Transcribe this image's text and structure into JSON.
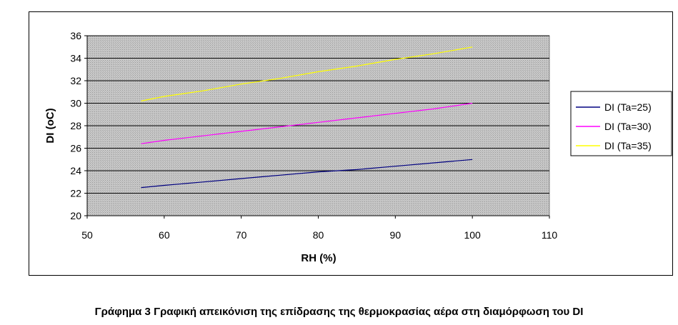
{
  "chart_data": {
    "type": "line",
    "xlabel": "RH (%)",
    "ylabel": "DI (oC)",
    "xlim": [
      50,
      110
    ],
    "ylim": [
      20,
      36
    ],
    "x_ticks": [
      "50",
      "60",
      "70",
      "80",
      "90",
      "100",
      "110"
    ],
    "y_ticks": [
      "20",
      "22",
      "24",
      "26",
      "28",
      "30",
      "32",
      "34",
      "36"
    ],
    "grid": true,
    "legend_position": "right",
    "series": [
      {
        "name": "DI (Ta=25)",
        "color": "#000080",
        "x": [
          57,
          60,
          65,
          70,
          75,
          80,
          85,
          90,
          95,
          100
        ],
        "y": [
          22.5,
          22.7,
          23.0,
          23.3,
          23.6,
          23.9,
          24.1,
          24.4,
          24.7,
          25.0
        ]
      },
      {
        "name": "DI (Ta=30)",
        "color": "#ff00ff",
        "x": [
          57,
          60,
          65,
          70,
          75,
          80,
          85,
          90,
          95,
          100
        ],
        "y": [
          26.4,
          26.7,
          27.1,
          27.5,
          27.9,
          28.3,
          28.7,
          29.1,
          29.5,
          30.0
        ]
      },
      {
        "name": "DI (Ta=35)",
        "color": "#ffff00",
        "x": [
          57,
          60,
          65,
          70,
          75,
          80,
          85,
          90,
          95,
          100
        ],
        "y": [
          30.2,
          30.6,
          31.1,
          31.7,
          32.2,
          32.8,
          33.3,
          33.9,
          34.4,
          35.0
        ]
      }
    ]
  },
  "caption": "Γράφημα 3 Γραφική απεικόνιση της επίδρασης της θερμοκρασίας αέρα στη διαμόρφωση του DI"
}
